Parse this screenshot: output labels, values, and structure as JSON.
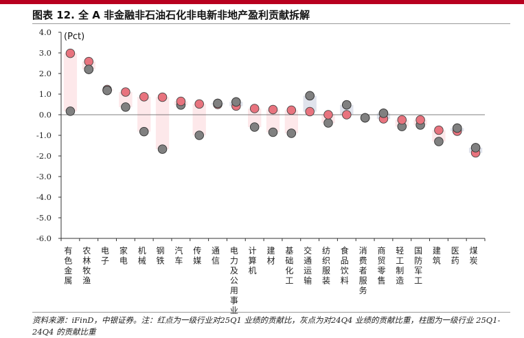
{
  "header": {
    "title": "图表 12. 全 A 非金融非石油石化非电新非地产盈利贡献拆解"
  },
  "chart_data": {
    "type": "scatter",
    "ylabel": "(Pct)",
    "ylim": [
      -6.0,
      4.0
    ],
    "yticks": [
      "4.0",
      "3.0",
      "2.0",
      "1.0",
      "0.0",
      "-1.0",
      "-2.0",
      "-3.0",
      "-4.0",
      "-5.0",
      "-6.0"
    ],
    "categories": [
      "有色金属",
      "农林牧渔",
      "电子",
      "家电",
      "机械",
      "钢铁",
      "汽车",
      "传媒",
      "通信",
      "电力及公用事业",
      "计算机",
      "建材",
      "基础化工",
      "交通运输",
      "纺织服装",
      "食品饮料",
      "消费者服务",
      "商贸零售",
      "轻工制造",
      "国防军工",
      "建筑",
      "医药",
      "煤炭"
    ],
    "series": [
      {
        "values": [
          2.98,
          2.58,
          1.22,
          1.1,
          0.87,
          0.85,
          0.65,
          0.52,
          0.5,
          0.42,
          0.3,
          0.25,
          0.22,
          0.15,
          0.0,
          0.0,
          -0.15,
          -0.2,
          -0.25,
          -0.25,
          -0.75,
          -0.8,
          -1.85
        ],
        "color": "#e8737e"
      },
      {
        "values": [
          0.17,
          2.2,
          1.18,
          0.37,
          -0.82,
          -1.67,
          0.47,
          -1.0,
          0.55,
          0.62,
          -0.6,
          -0.85,
          -0.9,
          0.92,
          -0.4,
          0.48,
          -0.15,
          0.07,
          -0.57,
          -0.5,
          -1.3,
          -0.65,
          -1.6
        ],
        "color": "#808080"
      }
    ],
    "bar_colors": {
      "pink": "#fde8ea",
      "grey": "#e0e3ec"
    },
    "grid": false
  },
  "footnote": "资料来源：iFinD，中银证券。注：红点为一级行业对25Q1 业绩的贡献比，灰点为对24Q4 业绩的贡献比重，柱图为一级行业 25Q1-24Q4 的贡献比重"
}
